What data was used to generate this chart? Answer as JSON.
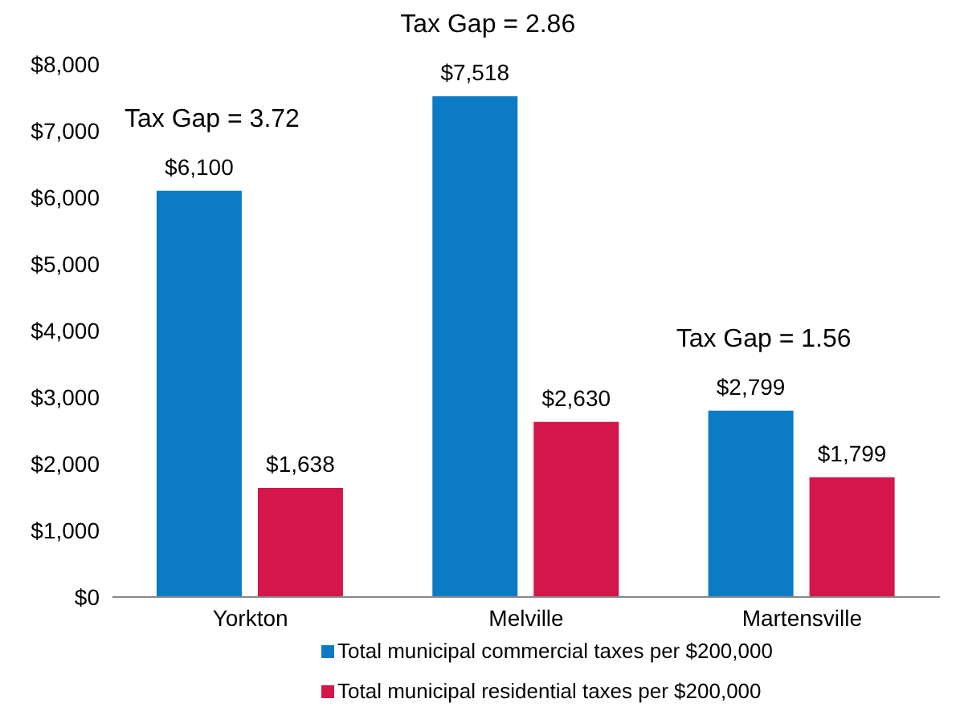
{
  "chart_data": {
    "type": "bar",
    "categories": [
      "Yorkton",
      "Melville",
      "Martensville"
    ],
    "series": [
      {
        "name": "Total municipal commercial taxes per $200,000",
        "color": "#0a7bc4",
        "values": [
          6100,
          7518,
          2799
        ],
        "value_labels": [
          "$6,100",
          "$7,518",
          "$2,799"
        ]
      },
      {
        "name": "Total municipal residential taxes per $200,000",
        "color": "#d4164a",
        "values": [
          1638,
          2630,
          1799
        ],
        "value_labels": [
          "$1,638",
          "$2,630",
          "$1,799"
        ]
      }
    ],
    "ylim": [
      0,
      8000
    ],
    "yticks": [
      {
        "value": 0,
        "label": "$0"
      },
      {
        "value": 1000,
        "label": "$1,000"
      },
      {
        "value": 2000,
        "label": "$2,000"
      },
      {
        "value": 3000,
        "label": "$3,000"
      },
      {
        "value": 4000,
        "label": "$4,000"
      },
      {
        "value": 5000,
        "label": "$5,000"
      },
      {
        "value": 6000,
        "label": "$6,000"
      },
      {
        "value": 7000,
        "label": "$7,000"
      },
      {
        "value": 8000,
        "label": "$8,000"
      }
    ],
    "annotations": [
      "Tax Gap = 3.72",
      "Tax Gap = 2.86",
      "Tax Gap = 1.56"
    ],
    "grid": false,
    "legend": "bottom"
  }
}
